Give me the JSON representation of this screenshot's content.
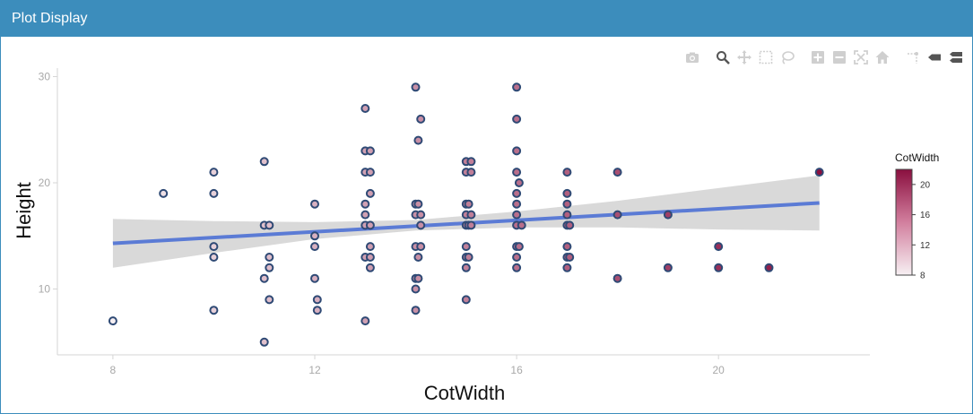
{
  "window": {
    "title": "Plot Display"
  },
  "modebar": {
    "buttons": [
      "camera-icon",
      "zoom-icon",
      "pan-icon",
      "box-select-icon",
      "lasso-select-icon",
      "zoom-in-icon",
      "zoom-out-icon",
      "autoscale-icon",
      "reset-axes-icon",
      "spike-lines-icon",
      "hover-closest-icon",
      "hover-compare-icon"
    ]
  },
  "colors": {
    "header": "#3c8dbc",
    "trend_line": "#5b7bd5",
    "confidence_band": "#d9d9d9",
    "marker_outline": "#2f4a75",
    "colorscale_low": "#f7f0f3",
    "colorscale_high": "#8a0f3f"
  },
  "chart_data": {
    "type": "scatter",
    "xlabel": "CotWidth",
    "ylabel": "Height",
    "xlim": [
      6.9,
      23.0
    ],
    "ylim": [
      3.8,
      30.8
    ],
    "xticks": [
      8,
      12,
      16,
      20
    ],
    "yticks": [
      10,
      20,
      30
    ],
    "grid": false,
    "colorbar": {
      "title": "CotWidth",
      "range": [
        8,
        22
      ],
      "ticks": [
        8,
        12,
        16,
        20
      ]
    },
    "points": [
      [
        8,
        7
      ],
      [
        9,
        19
      ],
      [
        10,
        21
      ],
      [
        10,
        19
      ],
      [
        10,
        14
      ],
      [
        10,
        13
      ],
      [
        10,
        8
      ],
      [
        11,
        22
      ],
      [
        11,
        16
      ],
      [
        11.1,
        16
      ],
      [
        11.1,
        13
      ],
      [
        11.1,
        12
      ],
      [
        11,
        11
      ],
      [
        11.1,
        9
      ],
      [
        11,
        5
      ],
      [
        12,
        18
      ],
      [
        12,
        15
      ],
      [
        12,
        14
      ],
      [
        12,
        11
      ],
      [
        12.05,
        9
      ],
      [
        12.05,
        8
      ],
      [
        13,
        27
      ],
      [
        13,
        23
      ],
      [
        13.1,
        23
      ],
      [
        13,
        21
      ],
      [
        13.1,
        21
      ],
      [
        13.1,
        19
      ],
      [
        13,
        18
      ],
      [
        13,
        17
      ],
      [
        13,
        16
      ],
      [
        13.1,
        16
      ],
      [
        13.1,
        14
      ],
      [
        13,
        13
      ],
      [
        13.1,
        13
      ],
      [
        13.1,
        12
      ],
      [
        13,
        7
      ],
      [
        14,
        29
      ],
      [
        14.1,
        26
      ],
      [
        14.05,
        24
      ],
      [
        14,
        18
      ],
      [
        14.05,
        18
      ],
      [
        14,
        17
      ],
      [
        14.1,
        17
      ],
      [
        14.1,
        16
      ],
      [
        14,
        14
      ],
      [
        14.1,
        14
      ],
      [
        14.05,
        13
      ],
      [
        14,
        11
      ],
      [
        14.05,
        11
      ],
      [
        14,
        10
      ],
      [
        14,
        8
      ],
      [
        15,
        22
      ],
      [
        15.1,
        22
      ],
      [
        15,
        21
      ],
      [
        15.1,
        21
      ],
      [
        15,
        18
      ],
      [
        15.05,
        18
      ],
      [
        15,
        17
      ],
      [
        15.1,
        17
      ],
      [
        15,
        16
      ],
      [
        15.05,
        16
      ],
      [
        15.1,
        16
      ],
      [
        15,
        14
      ],
      [
        15,
        13
      ],
      [
        15.05,
        13
      ],
      [
        15,
        12
      ],
      [
        15,
        9
      ],
      [
        16,
        29
      ],
      [
        16,
        26
      ],
      [
        16,
        23
      ],
      [
        16,
        21
      ],
      [
        16.05,
        20
      ],
      [
        16,
        19
      ],
      [
        16,
        18
      ],
      [
        16,
        17
      ],
      [
        16,
        16
      ],
      [
        16.1,
        16
      ],
      [
        16,
        14
      ],
      [
        16.05,
        14
      ],
      [
        16,
        13
      ],
      [
        16,
        12
      ],
      [
        17,
        21
      ],
      [
        17,
        19
      ],
      [
        17,
        18
      ],
      [
        17,
        17
      ],
      [
        17,
        16
      ],
      [
        17.05,
        16
      ],
      [
        17,
        14
      ],
      [
        17,
        13
      ],
      [
        17.05,
        13
      ],
      [
        17,
        12
      ],
      [
        18,
        21
      ],
      [
        18,
        17
      ],
      [
        18,
        11
      ],
      [
        19,
        17
      ],
      [
        19,
        12
      ],
      [
        20,
        14
      ],
      [
        20,
        12
      ],
      [
        21,
        12
      ],
      [
        22,
        21
      ]
    ],
    "trend_line": {
      "x": [
        8,
        22
      ],
      "y": [
        14.3,
        18.1
      ]
    },
    "confidence_band": {
      "x": [
        8,
        10,
        12,
        14,
        16,
        18,
        20,
        22
      ],
      "lower": [
        12.0,
        13.4,
        14.7,
        15.5,
        15.8,
        15.8,
        15.6,
        15.5
      ],
      "upper": [
        16.6,
        16.4,
        16.3,
        16.5,
        17.3,
        18.3,
        19.5,
        20.7
      ]
    }
  }
}
